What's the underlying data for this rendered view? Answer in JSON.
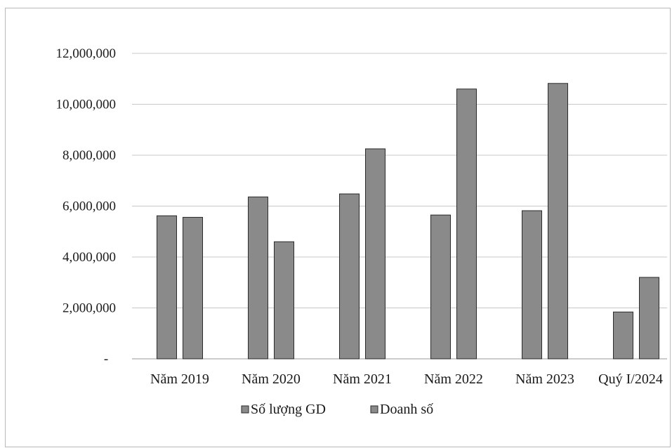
{
  "chart_data": {
    "type": "bar",
    "categories": [
      "Năm 2019",
      "Năm 2020",
      "Năm 2021",
      "Năm 2022",
      "Năm 2023",
      "Quý I/2024"
    ],
    "series": [
      {
        "name": "Số lượng GD",
        "values": [
          5620000,
          6360000,
          6480000,
          5650000,
          5820000,
          1840000
        ]
      },
      {
        "name": "Doanh số",
        "values": [
          5560000,
          4600000,
          8250000,
          10600000,
          10820000,
          3200000
        ]
      }
    ],
    "ylim": [
      0,
      12000000
    ],
    "y_ticks": [
      "-",
      "2,000,000",
      "4,000,000",
      "6,000,000",
      "8,000,000",
      "10,000,000",
      "12,000,000"
    ],
    "y_tick_values": [
      0,
      2000000,
      4000000,
      6000000,
      8000000,
      10000000,
      12000000
    ],
    "grid": true,
    "legend_position": "bottom",
    "colors": {
      "bar": "#8a8a8a",
      "bar_border": "#2b2b2b",
      "grid": "#c8c8c8",
      "axis": "#9a9a9a"
    }
  }
}
